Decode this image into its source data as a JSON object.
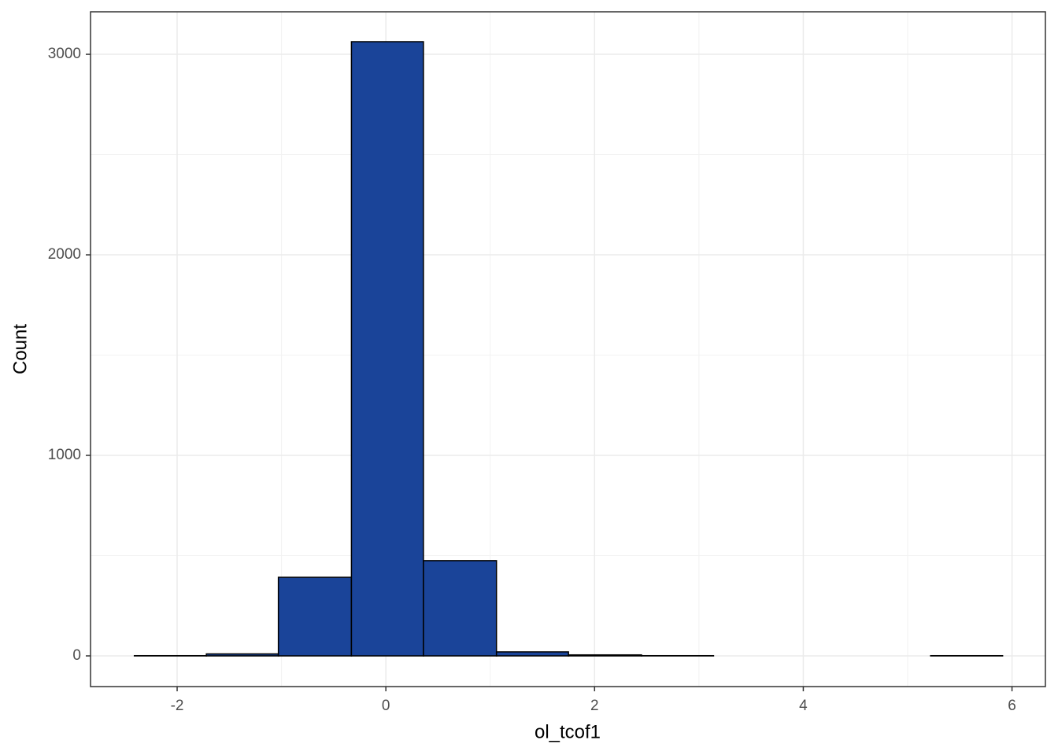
{
  "chart_data": {
    "type": "histogram",
    "x_label": "ol_tcof1",
    "y_label": "Count",
    "bins": [
      -2.41,
      -1.72,
      -1.03,
      -0.33,
      0.36,
      1.06,
      1.75,
      2.45,
      3.14,
      3.83,
      4.53,
      5.22,
      5.91
    ],
    "values": [
      1,
      10,
      392,
      3063,
      475,
      20,
      5,
      1,
      0,
      0,
      0,
      1
    ],
    "color": "#1a4499",
    "xlim": [
      -2.83,
      6.32
    ],
    "xticks": [
      -2,
      0,
      2,
      4,
      6
    ],
    "ylim": [
      -153,
      3212
    ],
    "yticks": [
      0,
      1000,
      2000,
      3000
    ],
    "grid": true
  }
}
